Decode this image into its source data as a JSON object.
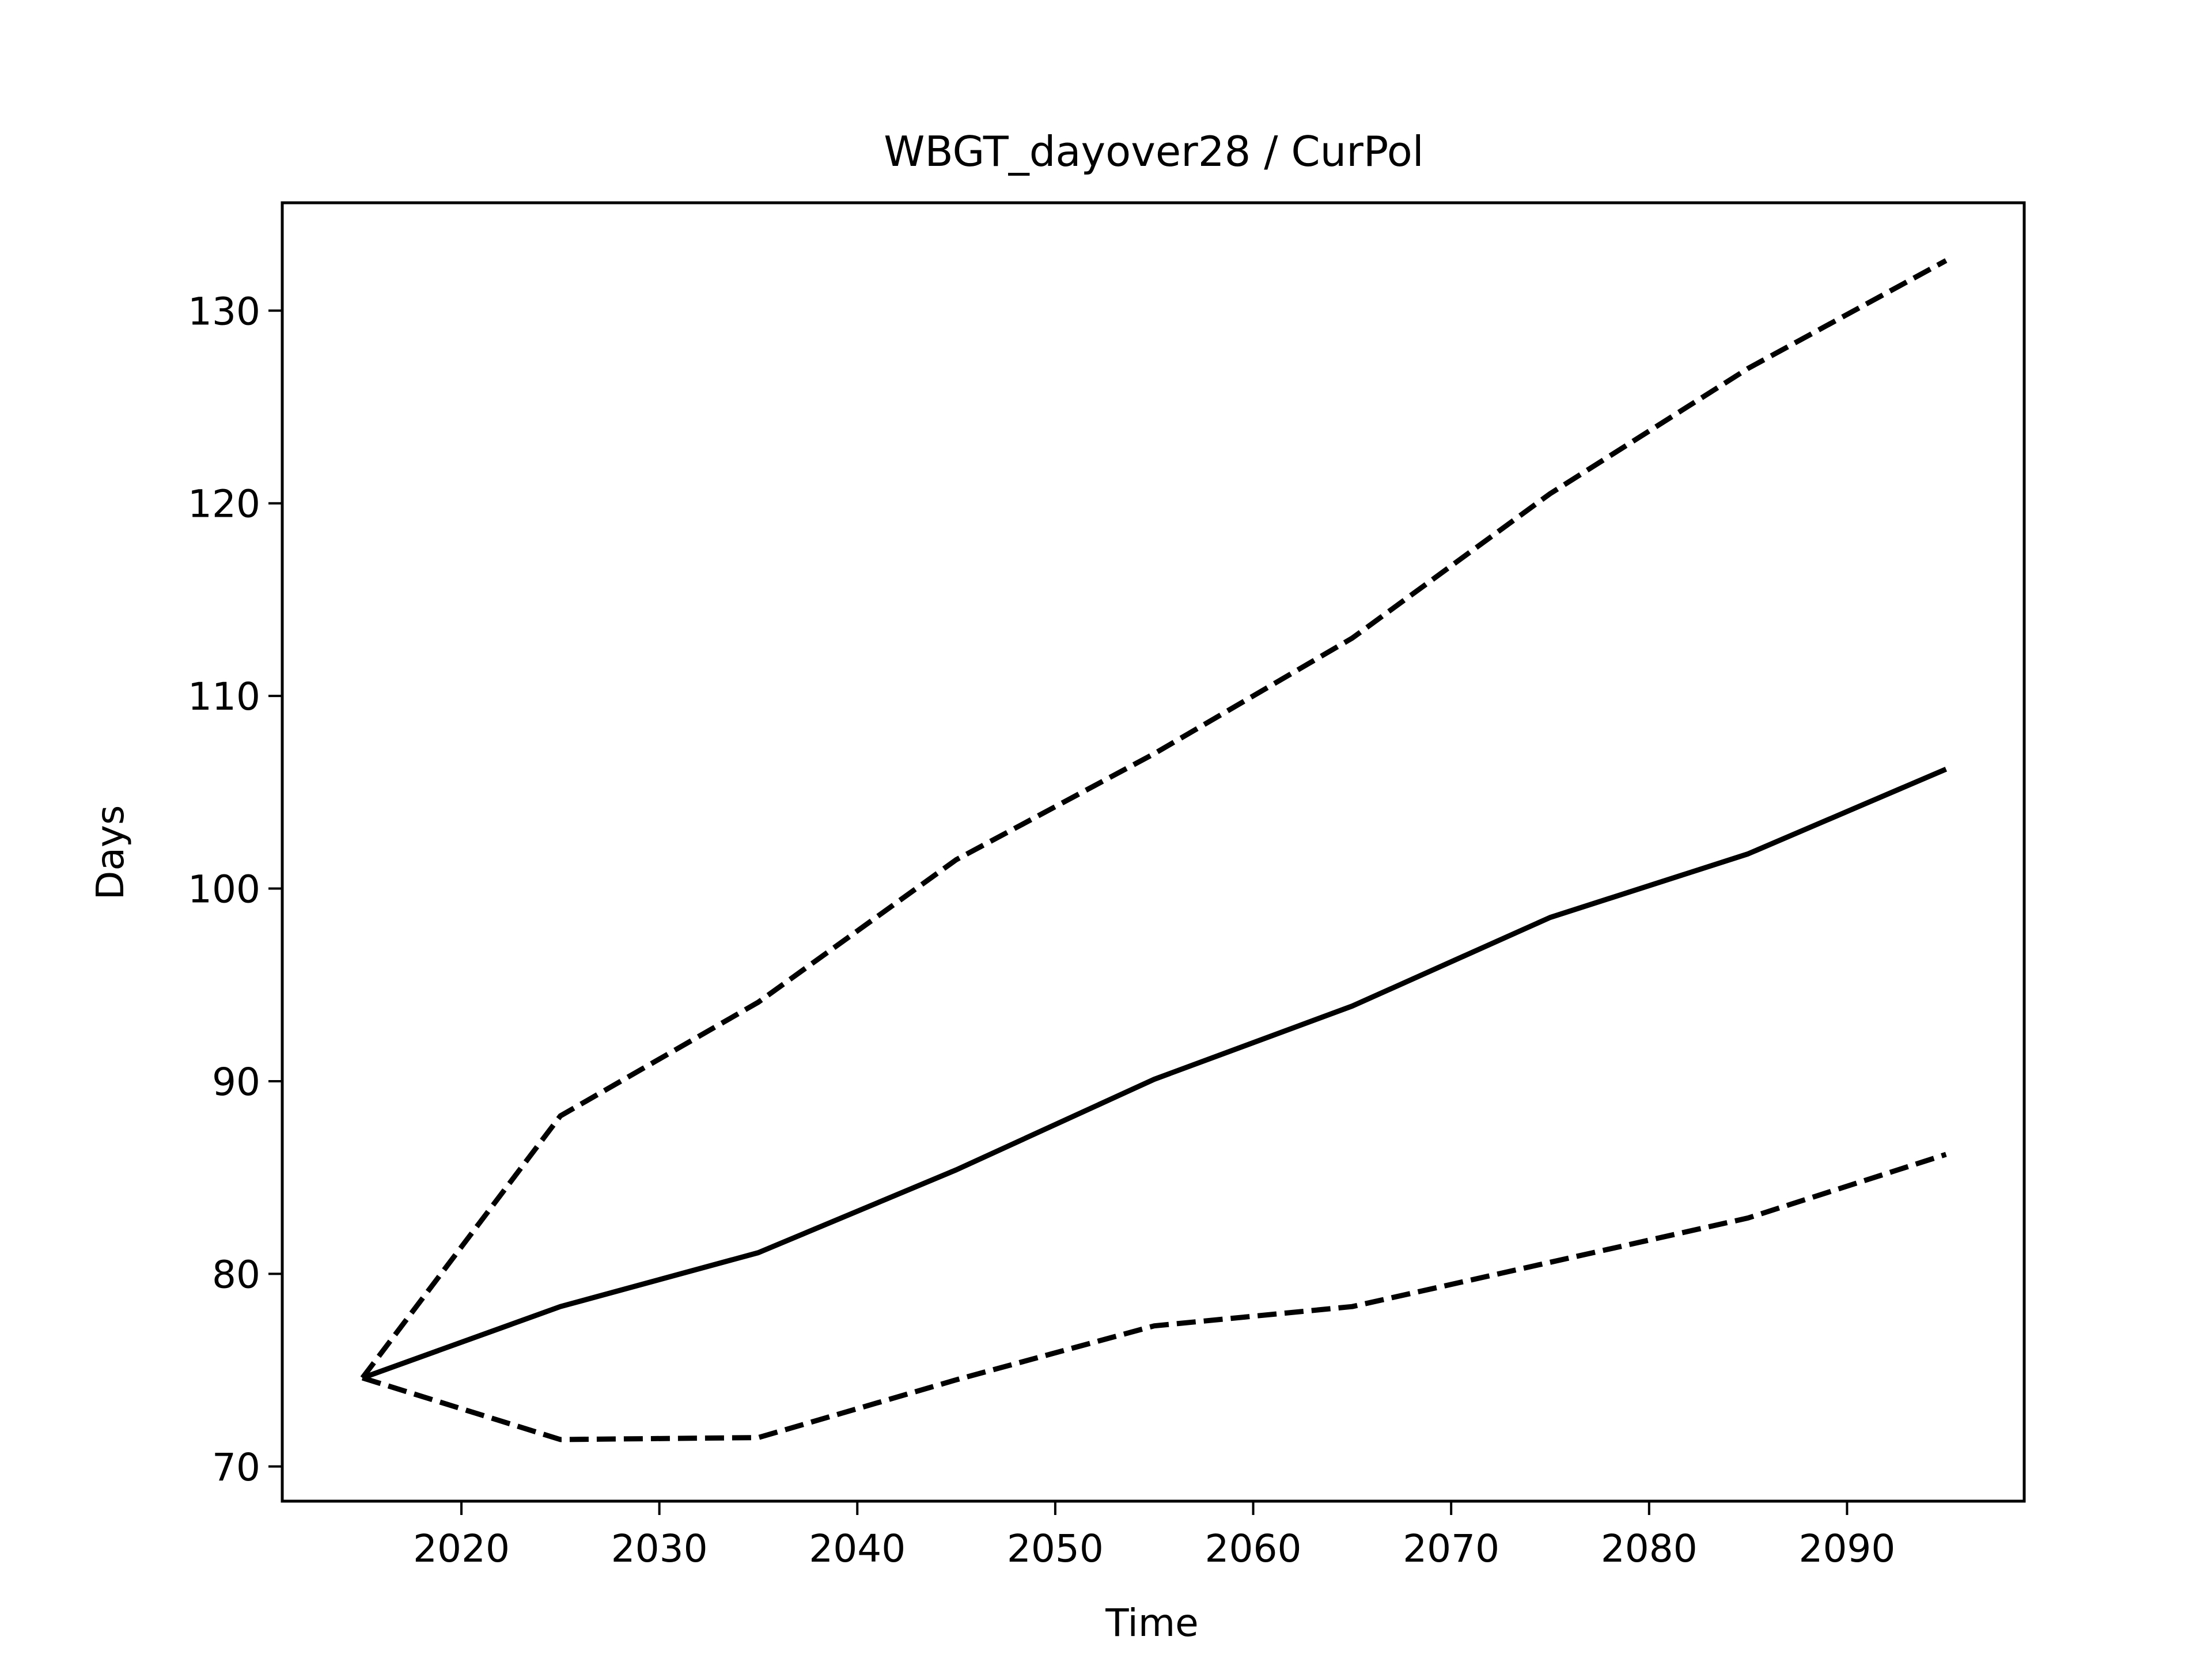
{
  "chart_data": {
    "type": "line",
    "title": "WBGT_dayover28 / CurPol",
    "xlabel": "Time",
    "ylabel": "Days",
    "xlim": [
      2010.95,
      2098.95
    ],
    "ylim": [
      68.2,
      135.6
    ],
    "xticks": [
      2020,
      2030,
      2040,
      2050,
      2060,
      2070,
      2080,
      2090
    ],
    "yticks": [
      70,
      80,
      90,
      100,
      110,
      120,
      130
    ],
    "grid": false,
    "legend": false,
    "x": [
      2015,
      2025,
      2035,
      2045,
      2055,
      2065,
      2075,
      2085,
      2095
    ],
    "series": [
      {
        "style": "solid",
        "color": "#000000",
        "values": [
          74.6,
          78.3,
          81.1,
          85.4,
          90.1,
          93.9,
          98.5,
          101.8,
          106.2
        ]
      },
      {
        "style": "dashed",
        "color": "#000000",
        "values": [
          74.6,
          88.2,
          94.1,
          101.5,
          107.0,
          113.0,
          120.5,
          127.0,
          132.6
        ]
      },
      {
        "style": "dashed",
        "color": "#000000",
        "values": [
          74.6,
          71.4,
          71.5,
          74.5,
          77.3,
          78.3,
          80.6,
          82.9,
          86.2
        ]
      }
    ]
  }
}
